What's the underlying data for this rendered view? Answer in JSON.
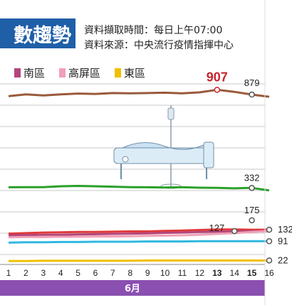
{
  "title": "數趨勢",
  "meta": {
    "capture_time": "資料擷取時間：每日上午07:00",
    "source": "資料來源：中央流行疫情指揮中心"
  },
  "legend": [
    {
      "label": "南區",
      "color": "#b5457a"
    },
    {
      "label": "高屏區",
      "color": "#f0a0b8"
    },
    {
      "label": "東區",
      "color": "#f0c000"
    }
  ],
  "chart_data": {
    "type": "line",
    "categories": [
      "1",
      "2",
      "3",
      "4",
      "5",
      "6",
      "7",
      "8",
      "9",
      "10",
      "11",
      "12",
      "13",
      "14",
      "15",
      "16"
    ],
    "month_label": "6月",
    "bold_categories": [
      "13",
      "15"
    ],
    "series": [
      {
        "color": "#9a5a3a",
        "values": [
          870,
          880,
          874,
          880,
          885,
          883,
          888,
          886,
          888,
          890,
          886,
          892,
          907,
          895,
          879,
          866
        ]
      },
      {
        "color": "#2aa02a",
        "values": [
          335,
          336,
          336,
          340,
          342,
          340,
          338,
          336,
          335,
          334,
          335,
          333,
          332,
          330,
          332,
          320
        ]
      },
      {
        "color": "#e03a3a",
        "values": [
          118,
          120,
          122,
          123,
          124,
          124,
          125,
          126,
          126,
          128,
          129,
          131,
          133,
          133,
          132,
          132
        ]
      },
      {
        "color": "#b5457a",
        "values": [
          112,
          113,
          114,
          114,
          115,
          116,
          117,
          118,
          119,
          121,
          122,
          124,
          125,
          126,
          127,
          126
        ]
      },
      {
        "color": "#f0a0b8",
        "values": [
          105,
          106,
          106,
          107,
          107,
          108,
          108,
          109,
          110,
          111,
          112,
          114,
          117,
          120,
          124,
          128
        ]
      },
      {
        "color": "#30b8e0",
        "values": [
          86,
          87,
          87,
          88,
          88,
          89,
          89,
          89,
          90,
          90,
          90,
          91,
          91,
          91,
          91,
          91
        ]
      },
      {
        "color": "#f0c000",
        "values": [
          20,
          20,
          21,
          21,
          21,
          21,
          21,
          21,
          22,
          22,
          22,
          22,
          22,
          22,
          22,
          22
        ]
      }
    ],
    "annotations": [
      {
        "text": "907",
        "category": "13",
        "value": 907,
        "emphasis": true
      },
      {
        "text": "879",
        "category": "15",
        "value": 879
      },
      {
        "text": "332",
        "category": "15",
        "value": 332
      },
      {
        "text": "175",
        "category": "15",
        "value": 175
      },
      {
        "text": "132",
        "category": "16",
        "value": 132
      },
      {
        "text": "127",
        "category": "14",
        "value": 127
      },
      {
        "text": "91",
        "category": "16",
        "value": 91
      },
      {
        "text": "22",
        "category": "16",
        "value": 22
      }
    ]
  }
}
